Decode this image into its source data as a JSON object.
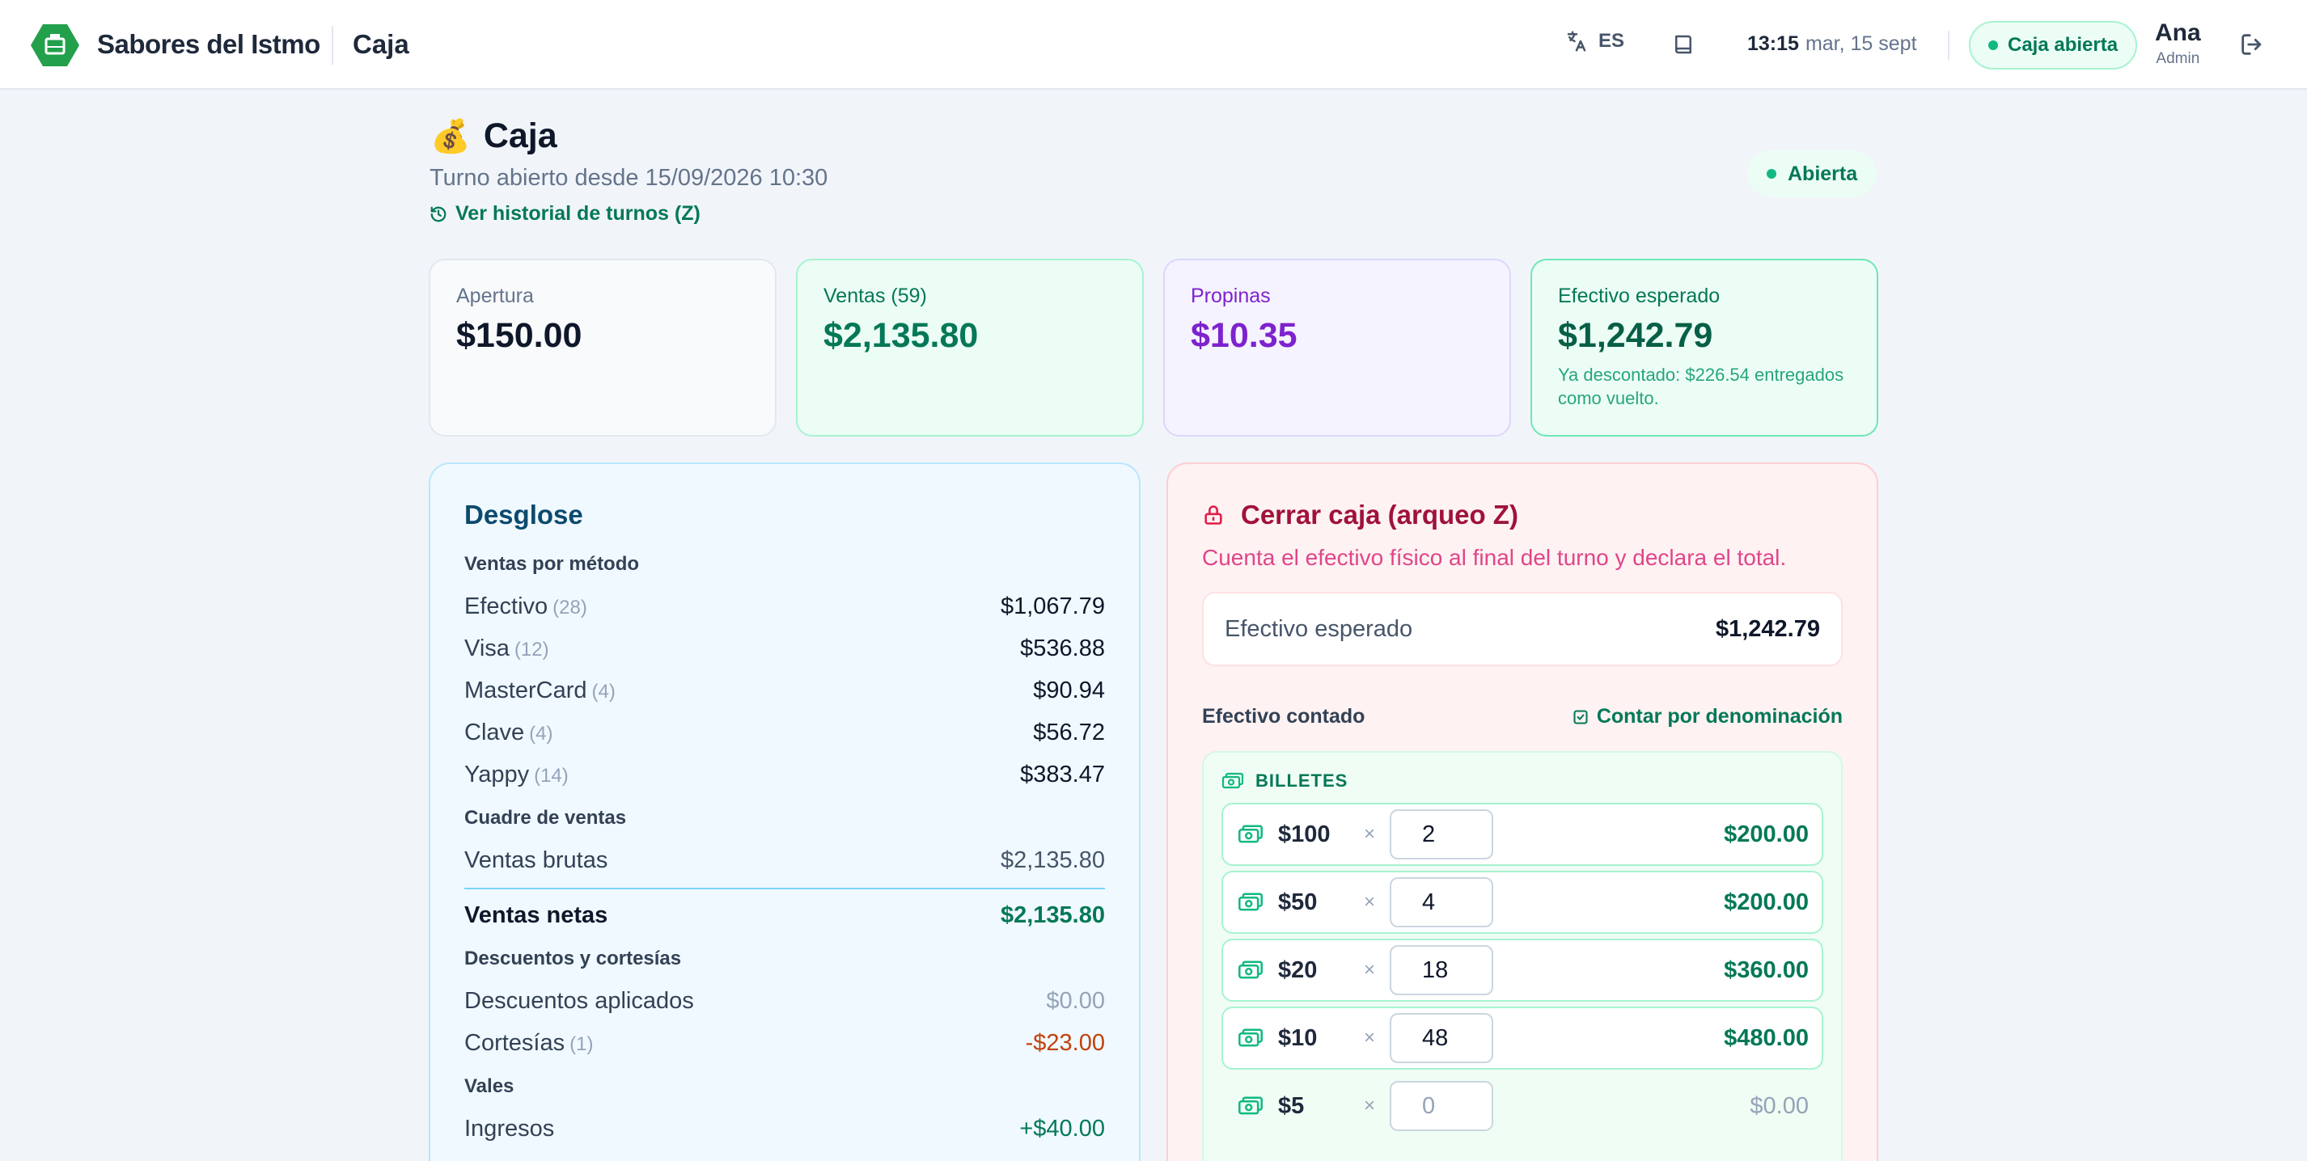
{
  "header": {
    "brand": "Sabores del Istmo",
    "section": "Caja",
    "language": "ES",
    "time": "13:15",
    "date": "mar, 15 sept",
    "caja_status": "Caja abierta",
    "user_name": "Ana",
    "user_role": "Admin",
    "colors": {
      "brand": "#22a04b",
      "accent": "#047857"
    }
  },
  "page": {
    "emoji": "💰",
    "title": "Caja",
    "subtitle": "Turno abierto desde 15/09/2026 10:30",
    "history_link": "Ver historial de turnos (Z)",
    "status": "Abierta"
  },
  "stats": {
    "apertura": {
      "label": "Apertura",
      "value": "$150.00"
    },
    "ventas": {
      "label": "Ventas (59)",
      "value": "$2,135.80"
    },
    "propinas": {
      "label": "Propinas",
      "value": "$10.35"
    },
    "esperado": {
      "label": "Efectivo esperado",
      "value": "$1,242.79",
      "note": "Ya descontado: $226.54 entregados como vuelto."
    }
  },
  "desglose": {
    "title": "Desglose",
    "metodos_label": "Ventas por método",
    "metodos": [
      {
        "name": "Efectivo",
        "count": "(28)",
        "value": "$1,067.79"
      },
      {
        "name": "Visa",
        "count": "(12)",
        "value": "$536.88"
      },
      {
        "name": "MasterCard",
        "count": "(4)",
        "value": "$90.94"
      },
      {
        "name": "Clave",
        "count": "(4)",
        "value": "$56.72"
      },
      {
        "name": "Yappy",
        "count": "(14)",
        "value": "$383.47"
      }
    ],
    "cuadre_label": "Cuadre de ventas",
    "brutas_label": "Ventas brutas",
    "brutas_value": "$2,135.80",
    "netas_label": "Ventas netas",
    "netas_value": "$2,135.80",
    "descuentos_group": "Descuentos y cortesías",
    "descuentos_label": "Descuentos aplicados",
    "descuentos_value": "$0.00",
    "cortesias_label": "Cortesías",
    "cortesias_count": "(1)",
    "cortesias_value": "-$23.00",
    "vales_label": "Vales",
    "ingresos_label": "Ingresos",
    "ingresos_value": "+$40.00"
  },
  "cierre": {
    "title": "Cerrar caja (arqueo Z)",
    "description": "Cuenta el efectivo físico al final del turno y declara el total.",
    "esperado_label": "Efectivo esperado",
    "esperado_value": "$1,242.79",
    "contado_label": "Efectivo contado",
    "denominacion_link": "Contar por denominación",
    "billetes_label": "BILLETES",
    "billetes": [
      {
        "denom": "$100",
        "qty": "2",
        "subtotal": "$200.00"
      },
      {
        "denom": "$50",
        "qty": "4",
        "subtotal": "$200.00"
      },
      {
        "denom": "$20",
        "qty": "18",
        "subtotal": "$360.00"
      },
      {
        "denom": "$10",
        "qty": "48",
        "subtotal": "$480.00"
      },
      {
        "denom": "$5",
        "qty": "",
        "placeholder": "0",
        "subtotal": "$0.00"
      }
    ],
    "times": "×"
  }
}
